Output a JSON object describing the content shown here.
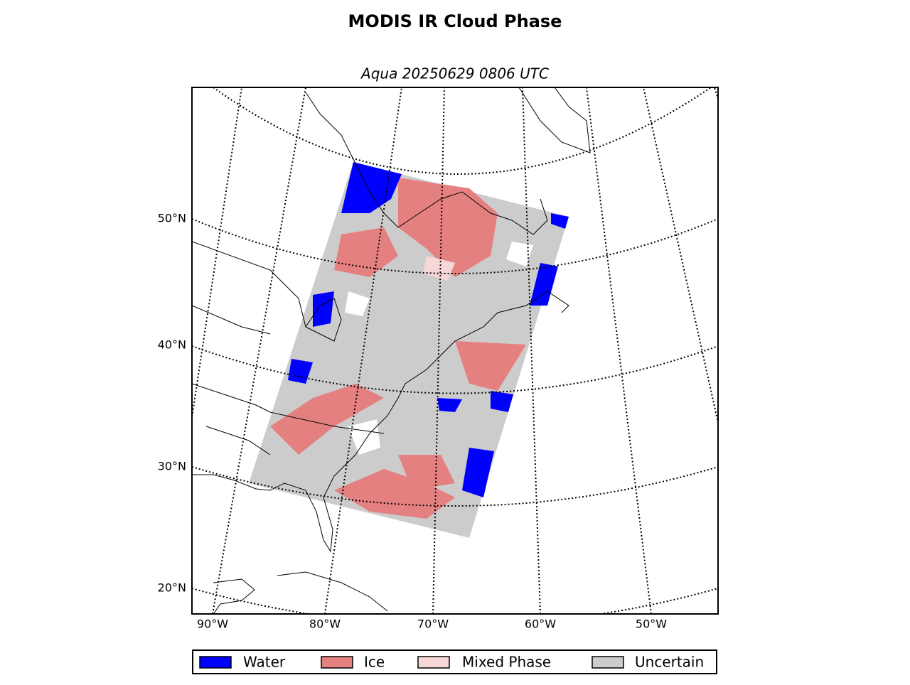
{
  "title": "MODIS IR Cloud Phase",
  "subtitle": "Aqua 20250629 0806 UTC",
  "map": {
    "lat_labels": [
      "50°N",
      "40°N",
      "30°N",
      "20°N"
    ],
    "lon_labels": [
      "90°W",
      "80°W",
      "70°W",
      "60°W",
      "50°W"
    ]
  },
  "legend": [
    {
      "name": "Water",
      "color": "#0000ff"
    },
    {
      "name": "Ice",
      "color": "#e58080"
    },
    {
      "name": "Mixed Phase",
      "color": "#f6d6d6"
    },
    {
      "name": "Uncertain",
      "color": "#cccccc"
    }
  ]
}
